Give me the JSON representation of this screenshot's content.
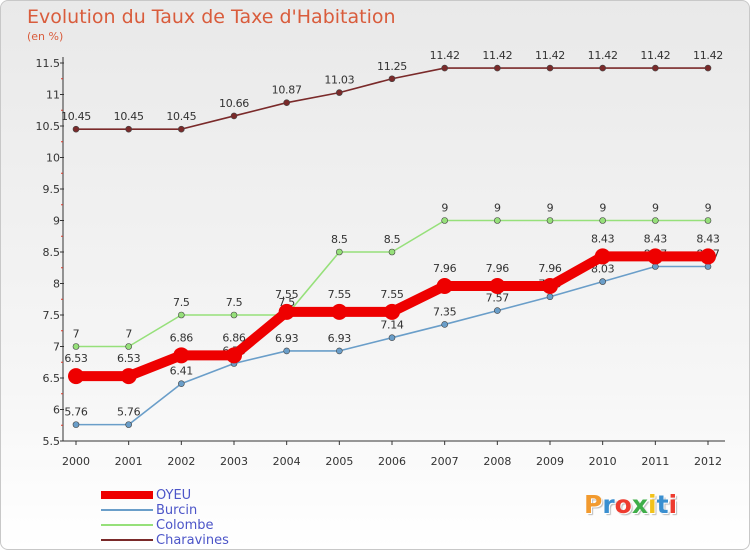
{
  "header": {
    "title": "Evolution du Taux de Taxe d'Habitation",
    "unit": "(en %)"
  },
  "brand": {
    "letters": [
      "P",
      "r",
      "o",
      "x",
      "i",
      "t",
      "i"
    ],
    "colors": [
      "#f29a2e",
      "#3a8fd0",
      "#ee3b2f",
      "#3fae49",
      "#f2c21a",
      "#3a8fd0",
      "#ee3b2f"
    ]
  },
  "chart_data": {
    "type": "line",
    "title": "Evolution du Taux de Taxe d'Habitation",
    "ylabel": "(en %)",
    "xlabel": "",
    "x": [
      "2000",
      "2001",
      "2002",
      "2003",
      "2004",
      "2005",
      "2006",
      "2007",
      "2008",
      "2009",
      "2010",
      "2011",
      "2012"
    ],
    "ylim": [
      5.5,
      11.5
    ],
    "yticks": [
      "5.5",
      "6",
      "6.5",
      "7",
      "7.5",
      "8",
      "8.5",
      "9",
      "9.5",
      "10",
      "10.5",
      "11",
      "11.5"
    ],
    "grid": false,
    "legend_position": "bottom-left",
    "series": [
      {
        "name": "OYEU",
        "color": "#ee0000",
        "values": [
          6.53,
          6.53,
          6.86,
          6.86,
          7.55,
          7.55,
          7.55,
          7.96,
          7.96,
          7.96,
          8.43,
          8.43,
          8.43
        ],
        "labels": [
          "6.53",
          "6.53",
          "6.86",
          "6.86",
          "7.55",
          "7.55",
          "7.55",
          "7.96",
          "7.96",
          "7.96",
          "8.43",
          "8.43",
          "8.43"
        ]
      },
      {
        "name": "Burcin",
        "color": "#6a9ec9",
        "values": [
          5.76,
          5.76,
          6.41,
          6.73,
          6.93,
          6.93,
          7.14,
          7.35,
          7.57,
          7.79,
          8.03,
          8.27,
          8.27
        ],
        "labels": [
          "5.76",
          "5.76",
          "6.41",
          "6.73",
          "6.93",
          "6.93",
          "7.14",
          "7.35",
          "7.57",
          "7.79",
          "8.03",
          "8.27",
          "8.27"
        ]
      },
      {
        "name": "Colombe",
        "color": "#96e07a",
        "values": [
          7,
          7,
          7.5,
          7.5,
          7.5,
          8.5,
          8.5,
          9,
          9,
          9,
          9,
          9,
          9
        ],
        "labels": [
          "7",
          "7",
          "7.5",
          "7.5",
          "7.5",
          "8.5",
          "8.5",
          "9",
          "9",
          "9",
          "9",
          "9",
          "9"
        ]
      },
      {
        "name": "Charavines",
        "color": "#7a2a2a",
        "values": [
          10.45,
          10.45,
          10.45,
          10.66,
          10.87,
          11.03,
          11.25,
          11.42,
          11.42,
          11.42,
          11.42,
          11.42,
          11.42
        ],
        "labels": [
          "10.45",
          "10.45",
          "10.45",
          "10.66",
          "10.87",
          "11.03",
          "11.25",
          "11.42",
          "11.42",
          "11.42",
          "11.42",
          "11.42",
          "11.42"
        ]
      }
    ]
  }
}
